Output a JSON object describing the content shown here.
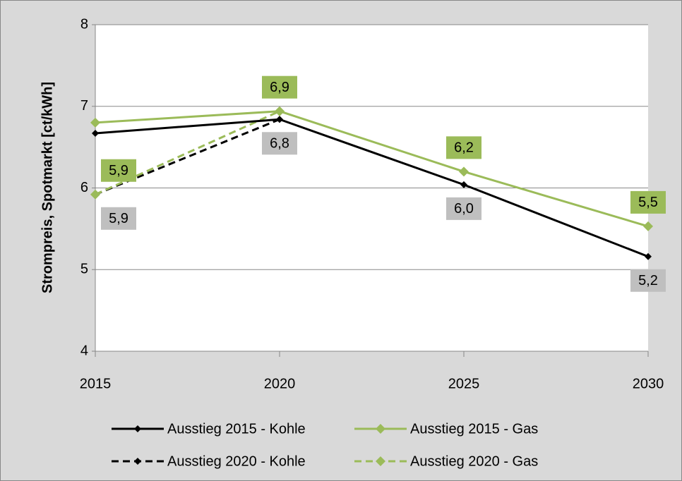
{
  "chart_data": {
    "type": "line",
    "y_label": "Strompreis, Spotmarkt [ct/kWh]",
    "x": [
      2015,
      2020,
      2025,
      2030
    ],
    "xlim": [
      2015,
      2030
    ],
    "xticks": [
      2015,
      2020,
      2025,
      2030
    ],
    "ylim": [
      4,
      8
    ],
    "yticks": [
      4,
      5,
      6,
      7,
      8
    ],
    "grid": true,
    "series": [
      {
        "name": "Ausstieg 2015 - Kohle",
        "color": "#000000",
        "line_style": "solid",
        "values": [
          6.67,
          6.84,
          6.04,
          5.16
        ],
        "value_labels": [
          null,
          "6,8",
          "6,0",
          "5,2"
        ]
      },
      {
        "name": "Ausstieg 2015 - Gas",
        "color": "#9bbb59",
        "line_style": "solid",
        "values": [
          6.8,
          6.94,
          6.2,
          5.53
        ],
        "value_labels": [
          null,
          "6,9",
          "6,2",
          "5,5"
        ]
      },
      {
        "name": "Ausstieg 2020 - Kohle",
        "color": "#000000",
        "line_style": "dashed",
        "values": [
          5.92,
          6.84,
          null,
          null
        ],
        "value_labels": [
          "5,9",
          null,
          null,
          null
        ]
      },
      {
        "name": "Ausstieg 2020 - Gas",
        "color": "#9bbb59",
        "line_style": "dashed",
        "values": [
          5.92,
          6.94,
          null,
          null
        ],
        "value_labels": [
          "5,9",
          null,
          null,
          null
        ]
      }
    ]
  }
}
